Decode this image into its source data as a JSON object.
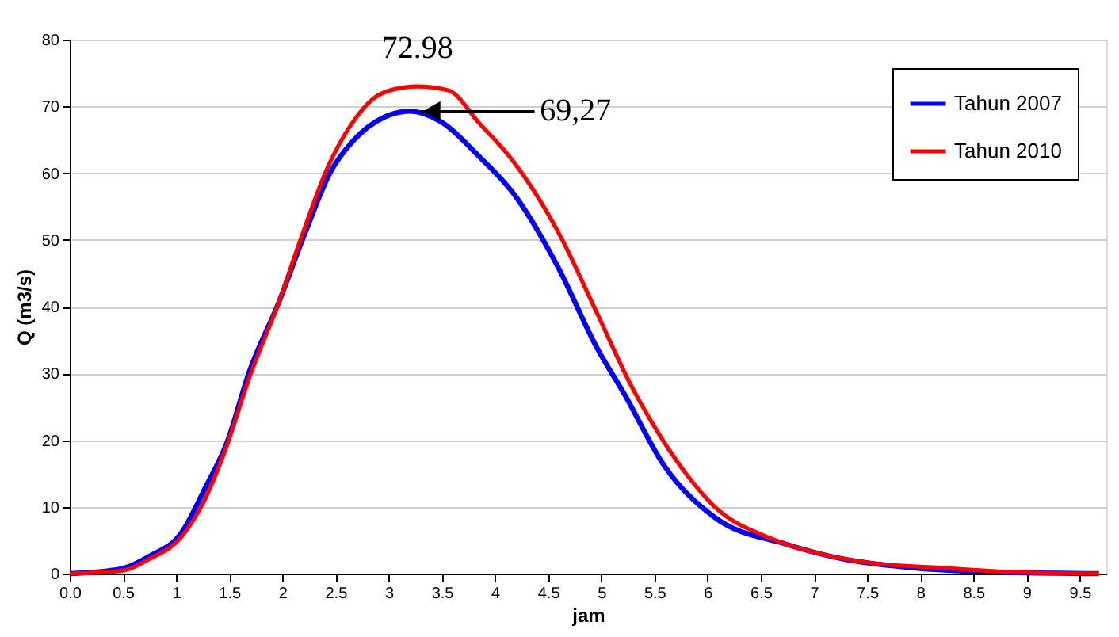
{
  "chart_data": {
    "type": "line",
    "xlabel": "jam",
    "ylabel": "Q  (m3/s)",
    "xlim": [
      0,
      9.75
    ],
    "xticks": [
      {
        "value": 0,
        "label": "0.0"
      },
      0.5,
      1,
      1.5,
      2,
      2.5,
      3,
      3.5,
      4,
      4.5,
      5,
      5.5,
      6,
      6.5,
      7,
      7.5,
      8,
      8.5,
      9,
      9.5
    ],
    "ylim": [
      0,
      80
    ],
    "yticks": [
      0,
      10,
      20,
      30,
      40,
      50,
      60,
      70,
      80
    ],
    "grid": "y",
    "legend": "top right",
    "series": [
      {
        "name": "Tahun 2007",
        "color": "#0000ff",
        "x": [
          0,
          0.48,
          0.75,
          1.05,
          1.27,
          1.48,
          1.69,
          1.96,
          2.22,
          2.45,
          2.67,
          2.96,
          3.2,
          3.48,
          3.85,
          4.19,
          4.59,
          4.96,
          5.22,
          5.59,
          6.06,
          6.74,
          7.27,
          7.9,
          8.53,
          9.68
        ],
        "values": [
          0,
          0.7,
          2.6,
          6.1,
          12.7,
          19.7,
          30.3,
          40.4,
          51.3,
          60.1,
          64.9,
          68.4,
          69.27,
          67.8,
          62.5,
          56.6,
          46,
          33.8,
          26.8,
          16.2,
          8.5,
          4.4,
          2.2,
          0.9,
          0.3,
          0
        ]
      },
      {
        "name": "Tahun 2010",
        "color": "#ff0000",
        "x": [
          0,
          0.48,
          0.75,
          1.05,
          1.27,
          1.46,
          1.69,
          1.96,
          2.17,
          2.43,
          2.64,
          2.85,
          3.06,
          3.27,
          3.56,
          3.85,
          4.17,
          4.59,
          4.96,
          5.27,
          5.59,
          5.8,
          6.06,
          6.59,
          7.0,
          7.53,
          8.16,
          8.89,
          9.68
        ],
        "values": [
          0,
          0.4,
          2.2,
          5.5,
          11.1,
          18.4,
          29.4,
          40.4,
          50,
          61,
          67.1,
          71.1,
          72.6,
          72.98,
          72.4,
          67.5,
          61.8,
          51.3,
          39,
          28.5,
          19.7,
          14.9,
          10.1,
          5.3,
          3.2,
          1.6,
          0.9,
          0.2,
          0
        ]
      }
    ],
    "annotations": [
      {
        "text": "72.98",
        "x": 3.27,
        "y": 72.98
      },
      {
        "text": "69,27",
        "x": 3.3,
        "y": 69.27
      }
    ]
  }
}
